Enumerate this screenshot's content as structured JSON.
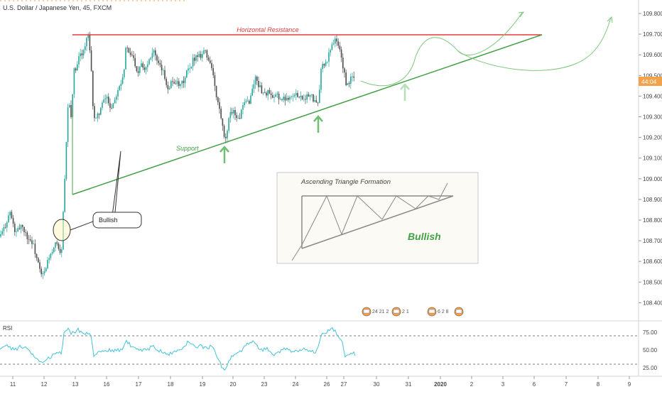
{
  "header": {
    "symbol_title": "U.S. Dollar / Japanese Yen, 45, FXCM"
  },
  "price_axis": {
    "ticks": [
      "109.800",
      "109.700",
      "109.600",
      "109.500",
      "109.400",
      "109.300",
      "109.200",
      "109.100",
      "109.000",
      "108.900",
      "108.800",
      "108.700",
      "108.600",
      "108.500",
      "108.400"
    ],
    "current_price_label": "44:04"
  },
  "rsi_axis": {
    "ticks": [
      "75.00",
      "50.00",
      "25.00"
    ]
  },
  "time_axis": {
    "ticks": [
      "11",
      "12",
      "13",
      "16",
      "17",
      "18",
      "19",
      "20",
      "23",
      "24",
      "26",
      "27",
      "30",
      "31",
      "2020",
      "2",
      "3",
      "6",
      "7",
      "8",
      "9"
    ]
  },
  "annotations": {
    "resistance_label": "Horizontal Resistance",
    "support_label": "Support",
    "bullish_callout": "Bullish",
    "inset_title": "Ascending Triangle Formation",
    "inset_bullish": "Bullish"
  },
  "event_flags": [
    "24 21 2",
    "2 1",
    "6 2 8",
    ""
  ],
  "rsi_panel_label": "RSI",
  "colors": {
    "up_candle": "#26a69a",
    "down_candle": "#4d4d4d",
    "resistance": "#e53935",
    "support": "#43a047",
    "rsi_line": "#44c2d6",
    "price_badge": "#f2a24a",
    "projection": "#7cc67c",
    "arrow": "#6fbf73"
  },
  "chart_data": [
    {
      "type": "candlestick",
      "title": "U.S. Dollar / Japanese Yen, 45, FXCM",
      "x_label_ticks": [
        "11",
        "12",
        "13",
        "16",
        "17",
        "18",
        "19",
        "20",
        "23",
        "24",
        "26",
        "27",
        "30",
        "31",
        "2020",
        "2",
        "3",
        "6",
        "7",
        "8",
        "9"
      ],
      "ylim": [
        108.36,
        109.86
      ],
      "close_path": [
        [
          0,
          108.72
        ],
        [
          6,
          108.76
        ],
        [
          14,
          108.84
        ],
        [
          22,
          108.73
        ],
        [
          30,
          108.78
        ],
        [
          38,
          108.72
        ],
        [
          46,
          108.69
        ],
        [
          52,
          108.61
        ],
        [
          58,
          108.53
        ],
        [
          64,
          108.55
        ],
        [
          68,
          108.62
        ],
        [
          74,
          108.64
        ],
        [
          80,
          108.7
        ],
        [
          86,
          108.61
        ],
        [
          92,
          109.05
        ],
        [
          96,
          109.38
        ],
        [
          100,
          109.3
        ],
        [
          104,
          109.52
        ],
        [
          108,
          109.53
        ],
        [
          112,
          109.6
        ],
        [
          118,
          109.62
        ],
        [
          124,
          109.7
        ],
        [
          128,
          109.55
        ],
        [
          131,
          109.35
        ],
        [
          134,
          109.27
        ],
        [
          138,
          109.31
        ],
        [
          144,
          109.36
        ],
        [
          150,
          109.4
        ],
        [
          156,
          109.34
        ],
        [
          162,
          109.39
        ],
        [
          166,
          109.44
        ],
        [
          170,
          109.47
        ],
        [
          174,
          109.51
        ],
        [
          178,
          109.66
        ],
        [
          182,
          109.59
        ],
        [
          186,
          109.6
        ],
        [
          190,
          109.56
        ],
        [
          194,
          109.51
        ],
        [
          198,
          109.57
        ],
        [
          204,
          109.53
        ],
        [
          210,
          109.58
        ],
        [
          216,
          109.63
        ],
        [
          222,
          109.55
        ],
        [
          228,
          109.53
        ],
        [
          232,
          109.49
        ],
        [
          236,
          109.44
        ],
        [
          242,
          109.47
        ],
        [
          248,
          109.47
        ],
        [
          252,
          109.44
        ],
        [
          256,
          109.46
        ],
        [
          260,
          109.48
        ],
        [
          264,
          109.53
        ],
        [
          268,
          109.52
        ],
        [
          272,
          109.58
        ],
        [
          278,
          109.6
        ],
        [
          284,
          109.6
        ],
        [
          288,
          109.63
        ],
        [
          292,
          109.58
        ],
        [
          296,
          109.57
        ],
        [
          300,
          109.5
        ],
        [
          304,
          109.4
        ],
        [
          308,
          109.35
        ],
        [
          312,
          109.28
        ],
        [
          316,
          109.18
        ],
        [
          320,
          109.22
        ],
        [
          324,
          109.33
        ],
        [
          328,
          109.33
        ],
        [
          332,
          109.31
        ],
        [
          336,
          109.28
        ],
        [
          340,
          109.33
        ],
        [
          346,
          109.37
        ],
        [
          352,
          109.38
        ],
        [
          356,
          109.45
        ],
        [
          360,
          109.49
        ],
        [
          366,
          109.44
        ],
        [
          372,
          109.41
        ],
        [
          378,
          109.42
        ],
        [
          384,
          109.38
        ],
        [
          390,
          109.41
        ],
        [
          396,
          109.38
        ],
        [
          402,
          109.39
        ],
        [
          408,
          109.4
        ],
        [
          414,
          109.4
        ],
        [
          420,
          109.41
        ],
        [
          426,
          109.39
        ],
        [
          432,
          109.4
        ],
        [
          438,
          109.4
        ],
        [
          442,
          109.38
        ],
        [
          446,
          109.35
        ],
        [
          450,
          109.43
        ],
        [
          452,
          109.54
        ],
        [
          456,
          109.55
        ],
        [
          460,
          109.56
        ],
        [
          464,
          109.62
        ],
        [
          468,
          109.66
        ],
        [
          472,
          109.67
        ],
        [
          476,
          109.65
        ],
        [
          480,
          109.6
        ],
        [
          484,
          109.52
        ],
        [
          488,
          109.44
        ],
        [
          492,
          109.47
        ],
        [
          496,
          109.5
        ],
        [
          500,
          109.47
        ]
      ]
    },
    {
      "type": "line",
      "title": "RSI",
      "ylim": [
        17.5,
        82.5
      ],
      "reference_lines": [
        70,
        30
      ],
      "values_path": [
        [
          0,
          54
        ],
        [
          10,
          57
        ],
        [
          20,
          50
        ],
        [
          30,
          55
        ],
        [
          40,
          50
        ],
        [
          50,
          38
        ],
        [
          60,
          30
        ],
        [
          70,
          40
        ],
        [
          80,
          47
        ],
        [
          86,
          44
        ],
        [
          90,
          72
        ],
        [
          95,
          80
        ],
        [
          100,
          74
        ],
        [
          110,
          78
        ],
        [
          120,
          73
        ],
        [
          128,
          70
        ],
        [
          132,
          43
        ],
        [
          140,
          48
        ],
        [
          150,
          50
        ],
        [
          160,
          48
        ],
        [
          170,
          50
        ],
        [
          178,
          62
        ],
        [
          186,
          54
        ],
        [
          196,
          50
        ],
        [
          206,
          50
        ],
        [
          216,
          55
        ],
        [
          226,
          48
        ],
        [
          236,
          43
        ],
        [
          246,
          49
        ],
        [
          256,
          48
        ],
        [
          264,
          60
        ],
        [
          272,
          56
        ],
        [
          280,
          55
        ],
        [
          290,
          53
        ],
        [
          300,
          56
        ],
        [
          306,
          42
        ],
        [
          312,
          28
        ],
        [
          316,
          20
        ],
        [
          322,
          34
        ],
        [
          330,
          44
        ],
        [
          340,
          48
        ],
        [
          350,
          60
        ],
        [
          358,
          62
        ],
        [
          366,
          50
        ],
        [
          376,
          52
        ],
        [
          386,
          44
        ],
        [
          396,
          50
        ],
        [
          406,
          50
        ],
        [
          416,
          48
        ],
        [
          426,
          52
        ],
        [
          436,
          50
        ],
        [
          444,
          44
        ],
        [
          450,
          60
        ],
        [
          452,
          72
        ],
        [
          458,
          75
        ],
        [
          464,
          77
        ],
        [
          470,
          79
        ],
        [
          476,
          72
        ],
        [
          482,
          60
        ],
        [
          486,
          40
        ],
        [
          490,
          42
        ],
        [
          496,
          45
        ],
        [
          500,
          44
        ]
      ]
    }
  ]
}
